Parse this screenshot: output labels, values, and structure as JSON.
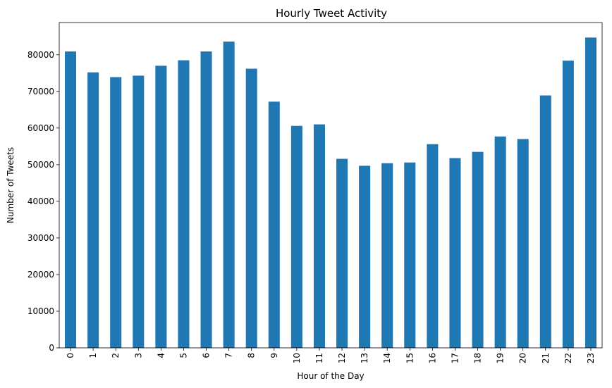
{
  "chart_data": {
    "type": "bar",
    "title": "Hourly Tweet Activity",
    "xlabel": "Hour of the Day",
    "ylabel": "Number of Tweets",
    "categories": [
      "0",
      "1",
      "2",
      "3",
      "4",
      "5",
      "6",
      "7",
      "8",
      "9",
      "10",
      "11",
      "12",
      "13",
      "14",
      "15",
      "16",
      "17",
      "18",
      "19",
      "20",
      "21",
      "22",
      "23"
    ],
    "values": [
      80900,
      75200,
      73900,
      74300,
      77000,
      78500,
      80900,
      83600,
      76200,
      67200,
      60600,
      61000,
      51600,
      49700,
      50400,
      50600,
      55600,
      51800,
      53500,
      57700,
      57000,
      68900,
      78400,
      84700
    ],
    "ylim": [
      0,
      88800
    ],
    "yticks": [
      0,
      10000,
      20000,
      30000,
      40000,
      50000,
      60000,
      70000,
      80000
    ],
    "ytick_labels": [
      "0",
      "10000",
      "20000",
      "30000",
      "40000",
      "50000",
      "60000",
      "70000",
      "80000"
    ],
    "bar_color": "#1f77b4",
    "grid": false,
    "legend": "none"
  }
}
